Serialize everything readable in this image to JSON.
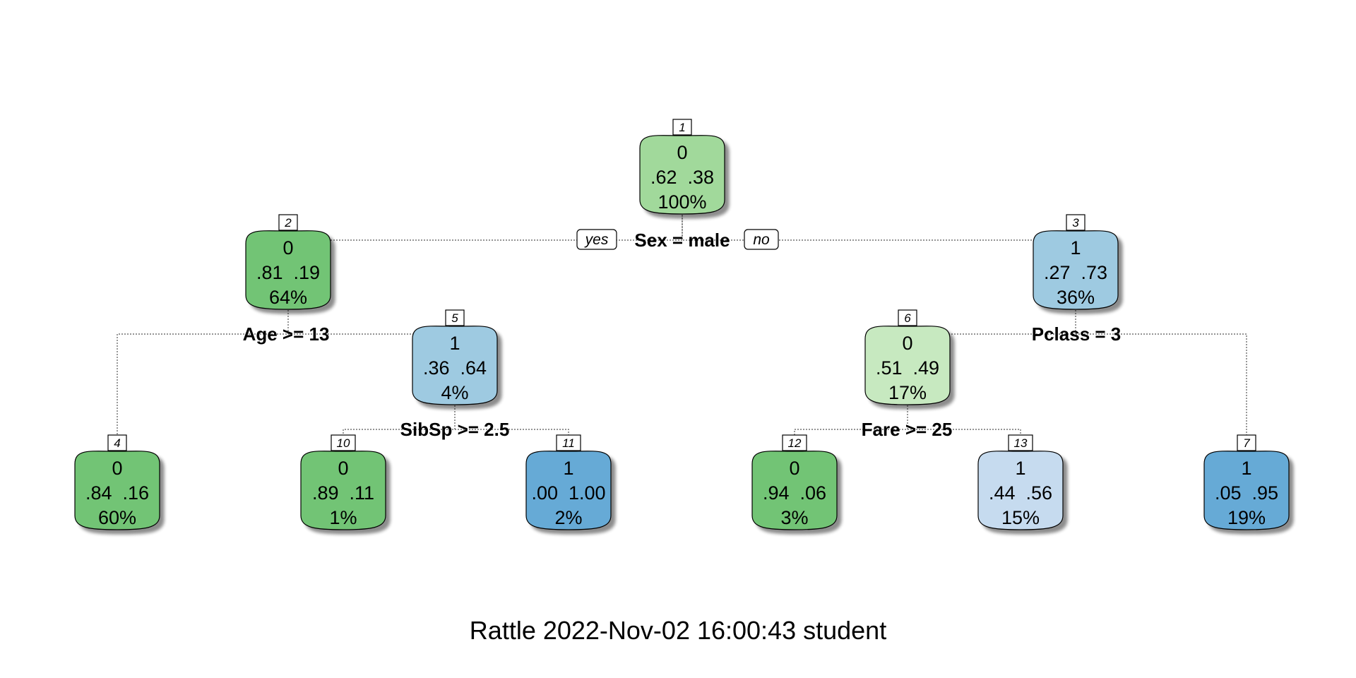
{
  "colors": {
    "green_dark": "#72c474",
    "green_mid": "#a1d99b",
    "green_light": "#c7e9c0",
    "blue_dark": "#66aad6",
    "blue_mid": "#9ecae1",
    "blue_light": "#c6dbef"
  },
  "tree": {
    "nodes": [
      {
        "id": "1",
        "cls": "0",
        "p0": ".62",
        "p1": ".38",
        "pct": "100%",
        "color": "#a1d99b"
      },
      {
        "id": "2",
        "cls": "0",
        "p0": ".81",
        "p1": ".19",
        "pct": "64%",
        "color": "#72c474"
      },
      {
        "id": "3",
        "cls": "1",
        "p0": ".27",
        "p1": ".73",
        "pct": "36%",
        "color": "#9ecae1"
      },
      {
        "id": "5",
        "cls": "1",
        "p0": ".36",
        "p1": ".64",
        "pct": "4%",
        "color": "#9ecae1"
      },
      {
        "id": "6",
        "cls": "0",
        "p0": ".51",
        "p1": ".49",
        "pct": "17%",
        "color": "#c7e9c0"
      },
      {
        "id": "4",
        "cls": "0",
        "p0": ".84",
        "p1": ".16",
        "pct": "60%",
        "color": "#72c474"
      },
      {
        "id": "10",
        "cls": "0",
        "p0": ".89",
        "p1": ".11",
        "pct": "1%",
        "color": "#72c474"
      },
      {
        "id": "11",
        "cls": "1",
        "p0": ".00",
        "p1": "1.00",
        "pct": "2%",
        "color": "#66aad6"
      },
      {
        "id": "12",
        "cls": "0",
        "p0": ".94",
        "p1": ".06",
        "pct": "3%",
        "color": "#72c474"
      },
      {
        "id": "13",
        "cls": "1",
        "p0": ".44",
        "p1": ".56",
        "pct": "15%",
        "color": "#c6dbef"
      },
      {
        "id": "7",
        "cls": "1",
        "p0": ".05",
        "p1": ".95",
        "pct": "19%",
        "color": "#66aad6"
      }
    ],
    "splits": {
      "root": "Sex = male",
      "node2": "Age >= 13",
      "node3": "Pclass = 3",
      "node5": "SibSp >= 2.5",
      "node6": "Fare >= 25"
    },
    "branch_labels": {
      "yes": "yes",
      "no": "no"
    }
  },
  "caption": "Rattle 2022-Nov-02 16:00:43 student"
}
